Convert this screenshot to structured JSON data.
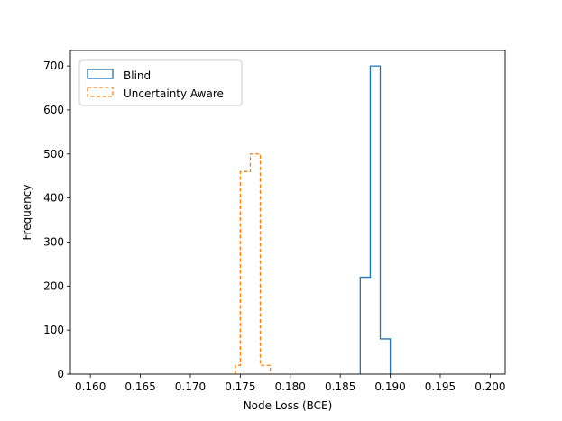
{
  "chart_data": {
    "type": "histogram",
    "title": "",
    "xlabel": "Node Loss (BCE)",
    "ylabel": "Frequency",
    "xlim": [
      0.158,
      0.2015
    ],
    "ylim": [
      0,
      735
    ],
    "xticks": [
      "0.160",
      "0.165",
      "0.170",
      "0.175",
      "0.180",
      "0.185",
      "0.190",
      "0.195",
      "0.200"
    ],
    "yticks": [
      "0",
      "100",
      "200",
      "300",
      "400",
      "500",
      "600",
      "700"
    ],
    "grid": false,
    "legend_position": "top-left",
    "series": [
      {
        "name": "Blind",
        "color": "#1f77b4",
        "linestyle": "solid",
        "bin_edges": [
          0.187,
          0.188,
          0.189,
          0.19
        ],
        "counts": [
          220,
          700,
          80
        ]
      },
      {
        "name": "Uncertainty Aware",
        "color": "#ff7f0e",
        "linestyle": "dashed",
        "bin_edges": [
          0.1745,
          0.175,
          0.176,
          0.177,
          0.178
        ],
        "counts": [
          20,
          460,
          500,
          20
        ]
      }
    ]
  }
}
